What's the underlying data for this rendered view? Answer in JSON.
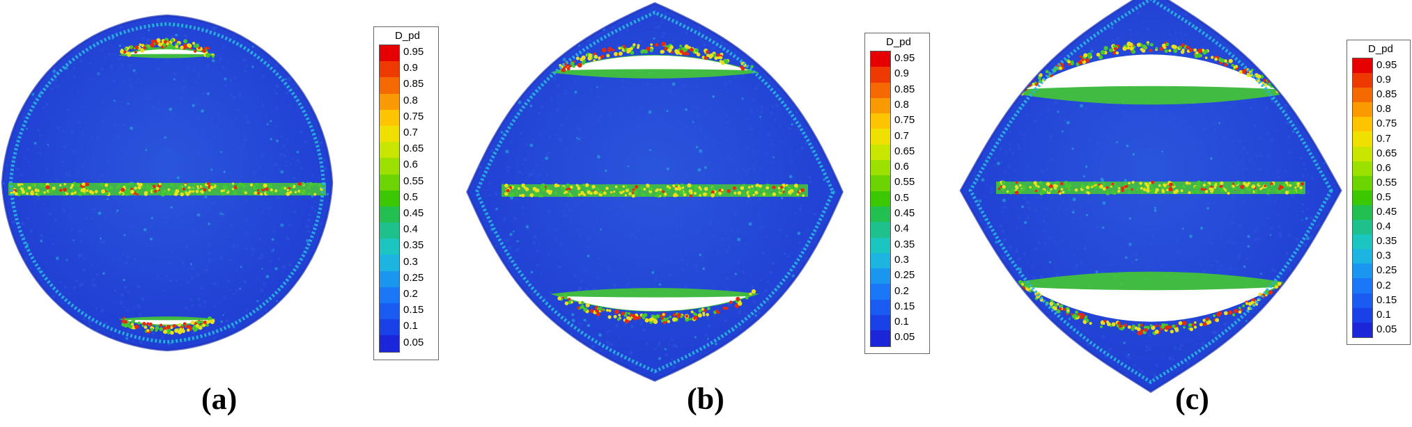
{
  "panels": [
    {
      "label": "(a)",
      "stage": 0
    },
    {
      "label": "(b)",
      "stage": 1
    },
    {
      "label": "(c)",
      "stage": 2
    }
  ],
  "legend": {
    "title": "D_pd",
    "ticks": [
      "0.95",
      "0.9",
      "0.85",
      "0.8",
      "0.75",
      "0.7",
      "0.65",
      "0.6",
      "0.55",
      "0.5",
      "0.45",
      "0.4",
      "0.35",
      "0.3",
      "0.25",
      "0.2",
      "0.15",
      "0.1",
      "0.05"
    ],
    "colors": [
      "#e60000",
      "#ee3a00",
      "#f56a00",
      "#fb9a00",
      "#ffc400",
      "#f0e000",
      "#c8e600",
      "#9ce000",
      "#6cd400",
      "#3cc800",
      "#22c050",
      "#1ec08c",
      "#1cc6c0",
      "#1cb4e0",
      "#1a96f0",
      "#1a78f8",
      "#1a5cf2",
      "#1a40e8",
      "#1a26d8"
    ]
  },
  "colors": {
    "body": "#1f3cd2",
    "body_light": "#2a55dc",
    "rim": "#2ab6de",
    "crack": "#46c832",
    "crack_hot": "#e8e020",
    "hot": "#e62a10",
    "void": "#ffffff"
  }
}
